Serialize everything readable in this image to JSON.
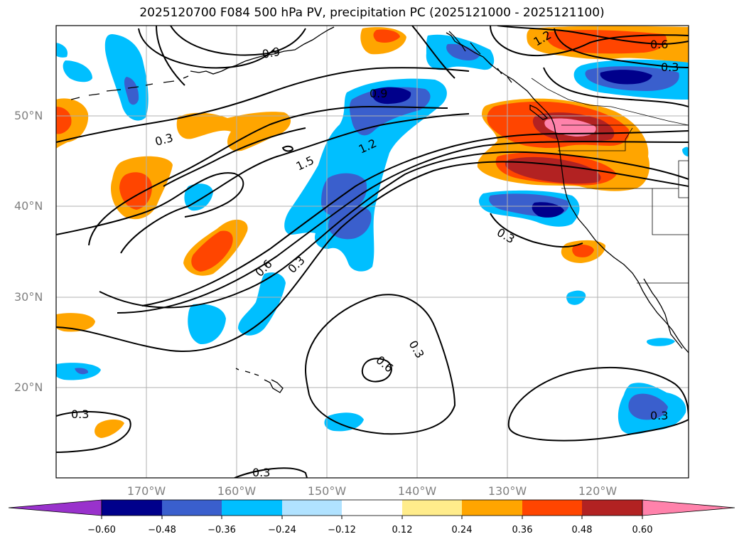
{
  "title": "2025120700 F084 500 hPa PV, precipitation PC (2025121000 - 2025121100)",
  "map": {
    "lon_range_deg": [
      -180,
      -110
    ],
    "lat_range_deg": [
      10,
      60
    ],
    "gridlines": true,
    "lat_labels": [
      "50°N",
      "40°N",
      "30°N",
      "20°N"
    ],
    "lon_labels": [
      "170°W",
      "160°W",
      "150°W",
      "140°W",
      "130°W",
      "120°W"
    ],
    "contour_labels": [
      "0.3",
      "0.6",
      "0.9",
      "1.2",
      "1.5"
    ]
  },
  "colorbar": {
    "tick_labels": [
      "−0.60",
      "−0.48",
      "−0.36",
      "−0.24",
      "−0.12",
      "0.12",
      "0.24",
      "0.36",
      "0.48",
      "0.60"
    ],
    "colors": [
      "#9932cc",
      "#00008b",
      "#3a5fcd",
      "#00bfff",
      "#b0e2ff",
      "#ffffff",
      "#ffec8b",
      "#ffa500",
      "#ff4500",
      "#b22222",
      "#ff82ab"
    ]
  }
}
